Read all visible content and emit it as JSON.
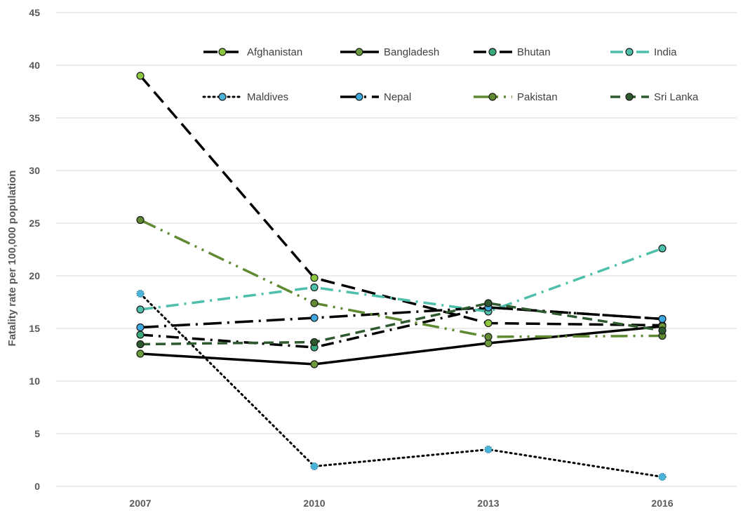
{
  "chart_data": {
    "type": "line",
    "ylabel": "Fatality rate per 100,000 population",
    "xlabel": "",
    "categories": [
      "2007",
      "2010",
      "2013",
      "2016"
    ],
    "ylim": [
      0,
      45
    ],
    "yticks": [
      "0",
      "5",
      "10",
      "15",
      "20",
      "25",
      "30",
      "35",
      "40",
      "45"
    ],
    "grid": "horizontal",
    "legend_position": "top",
    "series": [
      {
        "name": "Afghanistan",
        "values": [
          39.0,
          19.8,
          15.5,
          15.3
        ],
        "color": "#000000",
        "marker": "#8dc63f",
        "dash": "long-dash"
      },
      {
        "name": "Bangladesh",
        "values": [
          12.6,
          11.6,
          13.6,
          15.2
        ],
        "color": "#000000",
        "marker": "#6b9a3a",
        "dash": "solid"
      },
      {
        "name": "Bhutan",
        "values": [
          14.4,
          13.2,
          17.0,
          15.9
        ],
        "color": "#000000",
        "marker": "#3aaa7a",
        "dash": "dash-dot"
      },
      {
        "name": "India",
        "values": [
          16.8,
          18.9,
          16.6,
          22.6
        ],
        "color": "#4dbfaa",
        "marker": "#4dbfaa",
        "dash": "dash-dot"
      },
      {
        "name": "Maldives",
        "values": [
          18.3,
          1.9,
          3.5,
          0.9
        ],
        "color": "#000000",
        "marker": "#4ab3d9",
        "dash": "dotted"
      },
      {
        "name": "Nepal",
        "values": [
          15.1,
          16.0,
          17.0,
          15.9
        ],
        "color": "#000000",
        "marker": "#3ea8e0",
        "dash": "long-dash-dot"
      },
      {
        "name": "Pakistan",
        "values": [
          25.3,
          17.4,
          14.2,
          14.3
        ],
        "color": "#5f8a32",
        "marker": "#5f8a32",
        "dash": "long-dash-dot-dot"
      },
      {
        "name": "Sri Lanka",
        "values": [
          13.5,
          13.7,
          17.4,
          14.8
        ],
        "color": "#2f5a2f",
        "marker": "#2f5a2f",
        "dash": "dash"
      }
    ]
  }
}
